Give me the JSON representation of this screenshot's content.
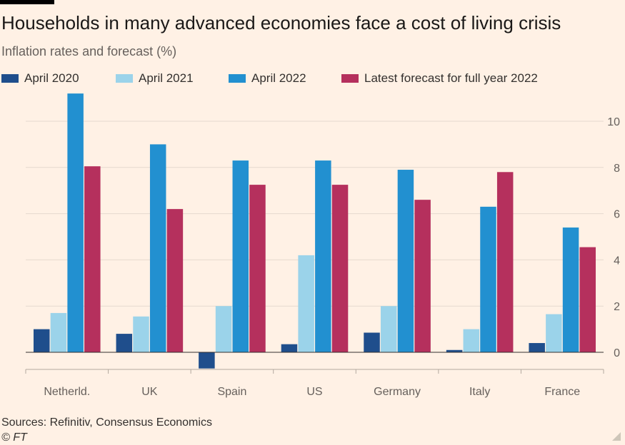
{
  "header": {
    "title": "Households in many advanced economies face a cost of living crisis",
    "subtitle": "Inflation rates and forecast (%)"
  },
  "footer": {
    "source": "Sources: Refinitiv, Consensus Economics",
    "credit": "© FT"
  },
  "chart_data": {
    "type": "bar",
    "title": "Households in many advanced economies face a cost of living crisis",
    "subtitle": "Inflation rates and forecast (%)",
    "xlabel": "",
    "ylabel": "",
    "ylim": [
      -0.7,
      11.5
    ],
    "yticks": [
      0,
      2,
      4,
      6,
      8,
      10
    ],
    "grid": true,
    "categories": [
      "Netherld.",
      "UK",
      "Spain",
      "US",
      "Germany",
      "Italy",
      "France"
    ],
    "series": [
      {
        "name": "April 2020",
        "color": "#1F4E8C",
        "values": [
          1.0,
          0.8,
          -0.7,
          0.35,
          0.85,
          0.1,
          0.4
        ]
      },
      {
        "name": "April 2021",
        "color": "#9BD3EA",
        "values": [
          1.7,
          1.55,
          2.0,
          4.2,
          2.0,
          1.0,
          1.65
        ]
      },
      {
        "name": "April 2022",
        "color": "#2290D0",
        "values": [
          11.2,
          9.0,
          8.3,
          8.3,
          7.9,
          6.3,
          5.4
        ]
      },
      {
        "name": "Latest forecast for full year 2022",
        "color": "#B5305D",
        "values": [
          8.05,
          6.2,
          7.25,
          7.25,
          6.6,
          7.8,
          4.55
        ]
      }
    ]
  }
}
